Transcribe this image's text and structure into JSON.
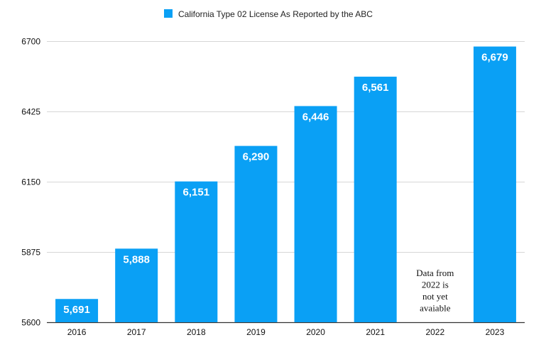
{
  "chart_data": {
    "type": "bar",
    "title": "",
    "xlabel": "",
    "ylabel": "",
    "categories": [
      "2016",
      "2017",
      "2018",
      "2019",
      "2020",
      "2021",
      "2022",
      "2023"
    ],
    "series": [
      {
        "name": "California Type 02 License As Reported by the ABC",
        "color": "#0aa0f5",
        "values": [
          5691,
          5888,
          6151,
          6290,
          6446,
          6561,
          null,
          6679
        ],
        "data_labels": [
          "5,691",
          "5,888",
          "6,151",
          "6,290",
          "6,446",
          "6,561",
          "",
          "6,679"
        ]
      }
    ],
    "ylim": [
      5600,
      6700
    ],
    "yticks": [
      5600,
      5875,
      6150,
      6425,
      6700
    ],
    "grid": true,
    "legend_position": "top-center",
    "annotations": [
      {
        "category": "2022",
        "lines": [
          "Data from",
          "2022 is",
          "not yet",
          "avaiable"
        ]
      }
    ]
  }
}
